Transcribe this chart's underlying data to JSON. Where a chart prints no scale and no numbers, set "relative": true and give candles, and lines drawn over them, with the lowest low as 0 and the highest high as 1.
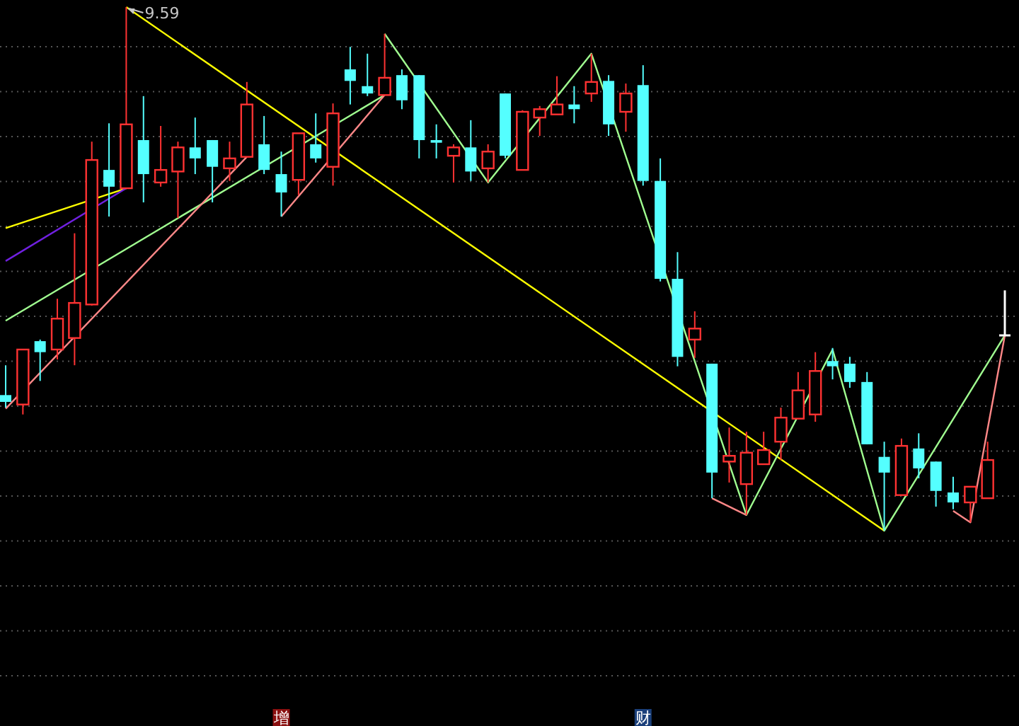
{
  "chart_data": {
    "type": "candlestick",
    "relative": true,
    "grid": true,
    "categories": [
      null,
      null,
      null,
      null,
      null,
      null,
      null,
      null,
      null,
      null,
      null,
      null,
      null,
      null,
      null,
      null,
      null,
      null,
      null,
      null,
      null,
      null,
      null,
      null,
      null,
      null,
      null,
      null,
      null,
      null,
      null,
      null,
      null,
      null,
      null,
      null,
      null,
      null,
      null,
      null,
      null,
      null,
      null,
      null,
      null,
      null,
      null,
      null,
      null,
      null,
      null,
      null,
      null,
      null,
      null,
      null,
      null,
      null,
      null
    ],
    "ohlc": [
      [
        0.259,
        0.316,
        0.235,
        0.246
      ],
      [
        0.241,
        0.346,
        0.222,
        0.346
      ],
      [
        0.362,
        0.365,
        0.286,
        0.341
      ],
      [
        0.346,
        0.443,
        0.327,
        0.405
      ],
      [
        0.368,
        0.568,
        0.316,
        0.435
      ],
      [
        0.432,
        0.743,
        0.43,
        0.708
      ],
      [
        0.689,
        0.778,
        0.6,
        0.657
      ],
      [
        0.654,
        1.0,
        0.654,
        0.776
      ],
      [
        0.746,
        0.83,
        0.627,
        0.681
      ],
      [
        0.665,
        0.773,
        0.657,
        0.689
      ],
      [
        0.686,
        0.743,
        0.597,
        0.732
      ],
      [
        0.732,
        0.789,
        0.681,
        0.711
      ],
      [
        0.746,
        0.746,
        0.627,
        0.695
      ],
      [
        0.692,
        0.743,
        0.668,
        0.711
      ],
      [
        0.714,
        0.857,
        0.714,
        0.814
      ],
      [
        0.738,
        0.792,
        0.681,
        0.689
      ],
      [
        0.681,
        0.724,
        0.6,
        0.646
      ],
      [
        0.67,
        0.759,
        0.641,
        0.759
      ],
      [
        0.738,
        0.797,
        0.703,
        0.711
      ],
      [
        0.695,
        0.816,
        0.659,
        0.797
      ],
      [
        0.881,
        0.924,
        0.814,
        0.859
      ],
      [
        0.849,
        0.911,
        0.83,
        0.835
      ],
      [
        0.832,
        0.949,
        0.832,
        0.865
      ],
      [
        0.87,
        0.881,
        0.805,
        0.822
      ],
      [
        0.87,
        0.87,
        0.711,
        0.746
      ],
      [
        0.746,
        0.776,
        0.711,
        0.741
      ],
      [
        0.716,
        0.738,
        0.665,
        0.732
      ],
      [
        0.732,
        0.784,
        0.668,
        0.686
      ],
      [
        0.692,
        0.738,
        0.665,
        0.724
      ],
      [
        0.835,
        0.835,
        0.711,
        0.716
      ],
      [
        0.689,
        0.803,
        0.689,
        0.8
      ],
      [
        0.789,
        0.811,
        0.754,
        0.805
      ],
      [
        0.795,
        0.868,
        0.795,
        0.814
      ],
      [
        0.814,
        0.849,
        0.778,
        0.805
      ],
      [
        0.835,
        0.911,
        0.819,
        0.857
      ],
      [
        0.859,
        0.87,
        0.754,
        0.776
      ],
      [
        0.8,
        0.854,
        0.762,
        0.835
      ],
      [
        0.851,
        0.889,
        0.659,
        0.668
      ],
      [
        0.668,
        0.711,
        0.476,
        0.481
      ],
      [
        0.481,
        0.532,
        0.314,
        0.332
      ],
      [
        0.365,
        0.419,
        0.33,
        0.386
      ],
      [
        0.319,
        0.319,
        0.062,
        0.111
      ],
      [
        0.132,
        0.197,
        0.092,
        0.143
      ],
      [
        0.089,
        0.189,
        0.03,
        0.149
      ],
      [
        0.127,
        0.189,
        0.127,
        0.154
      ],
      [
        0.17,
        0.235,
        0.135,
        0.216
      ],
      [
        0.214,
        0.303,
        0.214,
        0.268
      ],
      [
        0.222,
        0.341,
        0.208,
        0.305
      ],
      [
        0.324,
        0.349,
        0.289,
        0.314
      ],
      [
        0.319,
        0.332,
        0.273,
        0.284
      ],
      [
        0.284,
        0.303,
        0.165,
        0.165
      ],
      [
        0.141,
        0.17,
        0.0,
        0.111
      ],
      [
        0.068,
        0.176,
        0.068,
        0.162
      ],
      [
        0.157,
        0.186,
        0.1,
        0.119
      ],
      [
        0.132,
        0.132,
        0.046,
        0.076
      ],
      [
        0.073,
        0.103,
        0.041,
        0.054
      ],
      [
        0.054,
        0.084,
        0.016,
        0.084
      ],
      [
        0.062,
        0.17,
        0.062,
        0.135
      ],
      [
        0.373,
        0.459,
        0.373,
        0.373
      ]
    ],
    "colors": [
      "#54ffff",
      "#ff3232",
      "#54ffff",
      "#ff3232",
      "#ff3232",
      "#ff3232",
      "#54ffff",
      "#ff3232",
      "#54ffff",
      "#ff3232",
      "#ff3232",
      "#54ffff",
      "#54ffff",
      "#ff3232",
      "#ff3232",
      "#54ffff",
      "#54ffff",
      "#ff3232",
      "#54ffff",
      "#ff3232",
      "#54ffff",
      "#54ffff",
      "#ff3232",
      "#54ffff",
      "#54ffff",
      "#54ffff",
      "#ff3232",
      "#54ffff",
      "#ff3232",
      "#54ffff",
      "#ff3232",
      "#ff3232",
      "#ff3232",
      "#54ffff",
      "#ff3232",
      "#54ffff",
      "#ff3232",
      "#54ffff",
      "#54ffff",
      "#54ffff",
      "#ff3232",
      "#54ffff",
      "#ff3232",
      "#ff3232",
      "#ff3232",
      "#ff3232",
      "#ff3232",
      "#ff3232",
      "#54ffff",
      "#54ffff",
      "#54ffff",
      "#54ffff",
      "#ff3232",
      "#54ffff",
      "#54ffff",
      "#54ffff",
      "#ff3232",
      "#ff3232",
      "#ffffff"
    ],
    "series": [
      {
        "type": "line",
        "color": "#ffff00",
        "values": [
          0.578,
          null,
          null,
          null,
          null,
          null,
          null,
          0.654,
          null,
          null,
          null,
          null,
          null,
          null,
          null,
          null,
          null,
          null,
          null,
          null,
          null,
          null,
          null,
          null,
          null,
          null,
          null,
          null,
          null,
          null,
          null,
          null,
          null,
          null,
          null,
          null,
          null,
          null,
          null,
          null,
          null,
          null,
          null,
          null,
          null,
          null,
          null,
          null,
          null,
          null,
          null,
          null,
          null,
          null,
          null,
          null,
          null,
          null,
          null
        ]
      },
      {
        "type": "line",
        "color": "#ffff00",
        "values": [
          null,
          null,
          null,
          null,
          null,
          null,
          null,
          1.0,
          null,
          null,
          null,
          null,
          null,
          null,
          null,
          null,
          null,
          null,
          null,
          null,
          null,
          null,
          null,
          null,
          null,
          null,
          null,
          null,
          null,
          null,
          null,
          null,
          null,
          null,
          null,
          null,
          null,
          null,
          null,
          null,
          null,
          null,
          null,
          null,
          null,
          null,
          null,
          null,
          null,
          null,
          null,
          0.0,
          null,
          null,
          null,
          null,
          null,
          null,
          null
        ]
      },
      {
        "type": "line",
        "color": "#7020e0",
        "values": [
          0.515,
          null,
          null,
          null,
          null,
          null,
          null,
          0.654,
          null,
          null,
          null,
          null,
          null,
          null,
          null,
          null,
          null,
          null,
          null,
          null,
          null,
          null,
          null,
          null,
          null,
          null,
          null,
          null,
          null,
          null,
          null,
          null,
          null,
          null,
          null,
          null,
          null,
          null,
          null,
          null,
          null,
          null,
          null,
          null,
          null,
          null,
          null,
          null,
          null,
          null,
          null,
          null,
          null,
          null,
          null,
          null,
          null,
          null,
          null
        ]
      },
      {
        "type": "line",
        "color": "#a0ff90",
        "values": [
          0.401,
          null,
          null,
          null,
          null,
          null,
          null,
          null,
          null,
          null,
          null,
          null,
          null,
          null,
          null,
          null,
          null,
          null,
          null,
          null,
          null,
          null,
          0.832,
          null,
          null,
          null,
          null,
          null,
          null,
          null,
          null,
          null,
          null,
          null,
          null,
          null,
          null,
          null,
          null,
          null,
          null,
          null,
          null,
          null,
          null,
          null,
          null,
          null,
          null,
          null,
          null,
          null,
          null,
          null,
          null,
          null,
          null,
          null,
          null
        ]
      },
      {
        "type": "line",
        "color": "#a0ff90",
        "values": [
          null,
          null,
          null,
          null,
          null,
          null,
          null,
          null,
          null,
          null,
          null,
          null,
          null,
          null,
          null,
          null,
          null,
          null,
          null,
          null,
          null,
          null,
          0.949,
          null,
          null,
          null,
          null,
          null,
          0.665,
          null,
          null,
          null,
          null,
          null,
          0.911,
          null,
          null,
          null,
          null,
          null,
          null,
          null,
          null,
          0.03,
          null,
          null,
          null,
          null,
          0.346,
          null,
          null,
          0.0,
          null,
          null,
          null,
          null,
          null,
          null,
          0.373
        ]
      },
      {
        "type": "line",
        "color": "#ff8888",
        "values": [
          0.233,
          null,
          null,
          null,
          null,
          null,
          null,
          null,
          null,
          null,
          null,
          null,
          null,
          null,
          0.714,
          null,
          null,
          null,
          null,
          null,
          null,
          null,
          null,
          null,
          null,
          null,
          null,
          null,
          null,
          null,
          null,
          null,
          null,
          null,
          null,
          null,
          null,
          null,
          null,
          null,
          null,
          null,
          null,
          null,
          null,
          null,
          null,
          null,
          null,
          null,
          null,
          null,
          null,
          null,
          null,
          null,
          null,
          null,
          null
        ]
      },
      {
        "type": "line",
        "color": "#ff8888",
        "values": [
          null,
          null,
          null,
          null,
          null,
          null,
          null,
          null,
          null,
          null,
          null,
          null,
          null,
          null,
          null,
          null,
          0.6,
          null,
          null,
          null,
          null,
          null,
          0.832,
          null,
          null,
          null,
          null,
          null,
          null,
          null,
          null,
          null,
          null,
          null,
          null,
          null,
          null,
          null,
          null,
          null,
          null,
          null,
          null,
          null,
          null,
          null,
          null,
          null,
          null,
          null,
          null,
          null,
          null,
          null,
          null,
          null,
          null,
          null,
          null
        ]
      },
      {
        "type": "line",
        "color": "#ff8888",
        "values": [
          null,
          null,
          null,
          null,
          null,
          null,
          null,
          null,
          null,
          null,
          null,
          null,
          null,
          null,
          null,
          null,
          null,
          null,
          null,
          null,
          null,
          null,
          null,
          null,
          null,
          null,
          null,
          null,
          null,
          null,
          null,
          null,
          null,
          null,
          null,
          null,
          null,
          null,
          null,
          null,
          null,
          0.062,
          null,
          0.03,
          null,
          null,
          null,
          null,
          null,
          null,
          null,
          null,
          null,
          null,
          null,
          null,
          null,
          null,
          null
        ]
      },
      {
        "type": "line",
        "color": "#ff8888",
        "values": [
          null,
          null,
          null,
          null,
          null,
          null,
          null,
          null,
          null,
          null,
          null,
          null,
          null,
          null,
          null,
          null,
          null,
          null,
          null,
          null,
          null,
          null,
          null,
          null,
          null,
          null,
          null,
          null,
          null,
          null,
          null,
          null,
          null,
          null,
          null,
          null,
          null,
          null,
          null,
          null,
          null,
          null,
          null,
          null,
          null,
          null,
          null,
          null,
          null,
          null,
          null,
          null,
          null,
          null,
          null,
          0.038,
          0.016,
          null,
          0.373
        ]
      }
    ],
    "annotations": [
      "9.59",
      "增",
      "财"
    ]
  }
}
